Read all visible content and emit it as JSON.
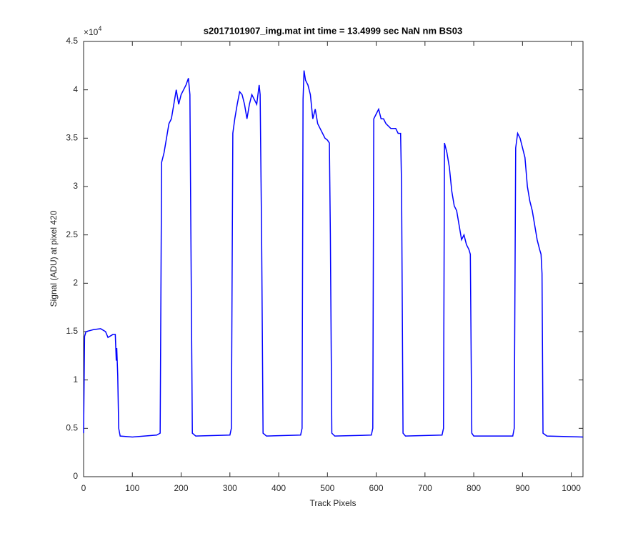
{
  "chart_data": {
    "type": "line",
    "title": "s2017101907_img.mat int time = 13.4999 sec  NaN nm BS03",
    "xlabel": "Track Pixels",
    "ylabel": "Signal (ADU) at pixel 420",
    "y_multiplier": {
      "base": "×10",
      "exponent": "4"
    },
    "xlim": [
      0,
      1024
    ],
    "ylim": [
      0,
      4.5
    ],
    "xticks": [
      0,
      100,
      200,
      300,
      400,
      500,
      600,
      700,
      800,
      900,
      1000
    ],
    "yticks": [
      0,
      0.5,
      1,
      1.5,
      2,
      2.5,
      3,
      3.5,
      4,
      4.5
    ],
    "grid": false,
    "series": [
      {
        "color": "#0000ff",
        "x": [
          0,
          2,
          5,
          20,
          35,
          45,
          50,
          60,
          65,
          67,
          68,
          70,
          72,
          75,
          100,
          150,
          157,
          160,
          165,
          170,
          175,
          180,
          185,
          190,
          195,
          200,
          205,
          210,
          215,
          218,
          220,
          223,
          230,
          300,
          303,
          306,
          310,
          315,
          320,
          325,
          330,
          335,
          340,
          345,
          350,
          355,
          360,
          362,
          365,
          368,
          375,
          445,
          448,
          450,
          452,
          455,
          460,
          465,
          470,
          475,
          480,
          485,
          490,
          495,
          500,
          504,
          506,
          509,
          515,
          590,
          593,
          595,
          600,
          605,
          610,
          615,
          620,
          630,
          640,
          645,
          650,
          652,
          655,
          660,
          735,
          738,
          740,
          745,
          750,
          755,
          760,
          765,
          770,
          775,
          780,
          785,
          790,
          793,
          796,
          800,
          880,
          883,
          886,
          890,
          895,
          900,
          905,
          910,
          915,
          920,
          925,
          930,
          935,
          938,
          940,
          942,
          950,
          1024
        ],
        "values": [
          0.45,
          1.45,
          1.5,
          1.52,
          1.53,
          1.5,
          1.44,
          1.47,
          1.47,
          1.2,
          1.33,
          1.05,
          0.5,
          0.42,
          0.41,
          0.43,
          0.45,
          3.25,
          3.35,
          3.5,
          3.65,
          3.7,
          3.85,
          4.0,
          3.85,
          3.95,
          4.0,
          4.05,
          4.12,
          3.95,
          2.5,
          0.45,
          0.42,
          0.43,
          0.5,
          3.55,
          3.7,
          3.85,
          3.98,
          3.95,
          3.85,
          3.7,
          3.85,
          3.95,
          3.9,
          3.85,
          4.05,
          3.95,
          2.5,
          0.45,
          0.42,
          0.43,
          0.5,
          3.9,
          4.2,
          4.1,
          4.05,
          3.95,
          3.7,
          3.8,
          3.65,
          3.6,
          3.55,
          3.5,
          3.48,
          3.45,
          2.5,
          0.45,
          0.42,
          0.43,
          0.5,
          3.7,
          3.75,
          3.8,
          3.7,
          3.7,
          3.65,
          3.6,
          3.6,
          3.55,
          3.55,
          3.0,
          0.45,
          0.42,
          0.43,
          0.5,
          3.45,
          3.35,
          3.2,
          2.95,
          2.8,
          2.75,
          2.6,
          2.45,
          2.5,
          2.4,
          2.35,
          2.3,
          0.45,
          0.42,
          0.42,
          0.5,
          3.4,
          3.55,
          3.5,
          3.4,
          3.3,
          3.0,
          2.85,
          2.75,
          2.6,
          2.45,
          2.35,
          2.3,
          2.1,
          0.45,
          0.42,
          0.41
        ]
      }
    ]
  }
}
